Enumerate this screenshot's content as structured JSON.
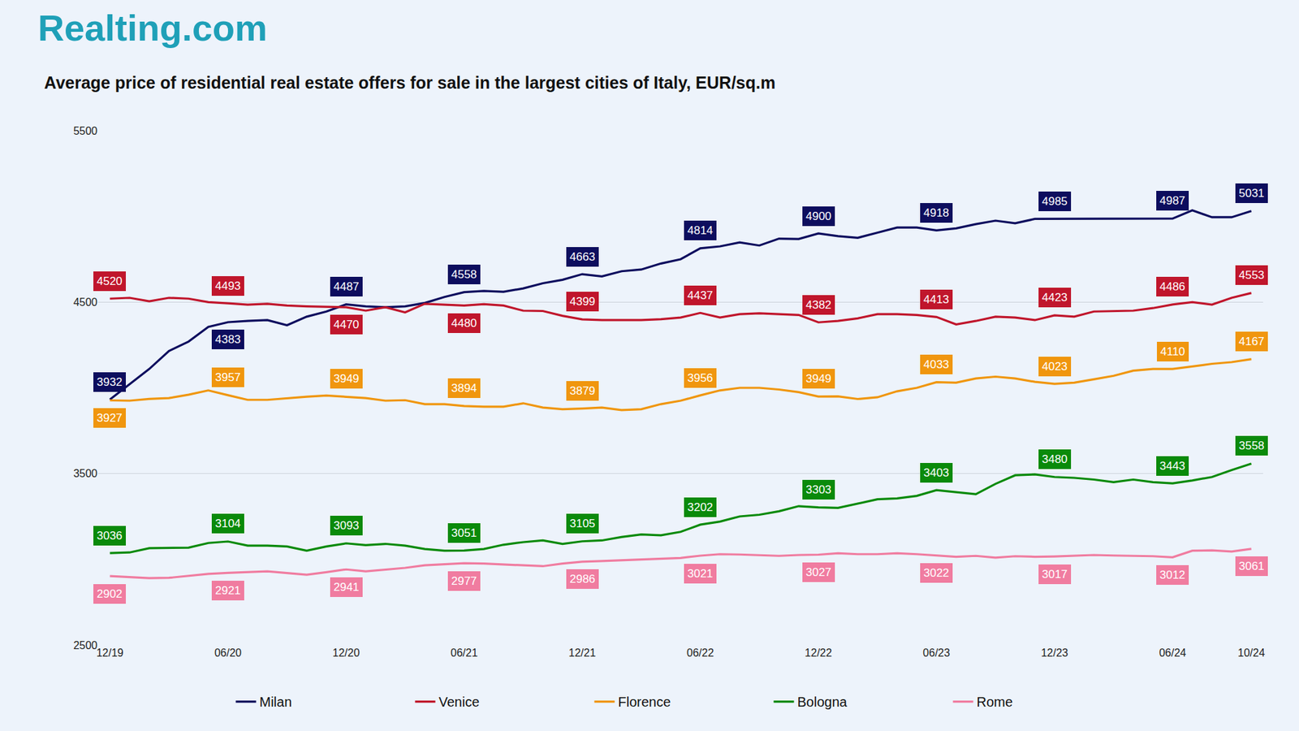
{
  "chart_data": {
    "type": "line",
    "title": "Average price of residential real estate offers for sale in the largest cities of Italy, EUR/sq.m",
    "annotations": [
      {
        "text": "Realting.com"
      }
    ],
    "categories": [
      "12/19",
      null,
      null,
      null,
      null,
      null,
      "06/20",
      null,
      null,
      null,
      null,
      null,
      "12/20",
      null,
      null,
      null,
      null,
      null,
      "06/21",
      null,
      null,
      null,
      null,
      null,
      "12/21",
      null,
      null,
      null,
      null,
      null,
      "06/22",
      null,
      null,
      null,
      null,
      null,
      "12/22",
      null,
      null,
      null,
      null,
      null,
      "06/23",
      null,
      null,
      null,
      null,
      null,
      "12/23",
      null,
      null,
      null,
      null,
      null,
      "06/24",
      null,
      null,
      null,
      "10/24"
    ],
    "series": [
      {
        "name": "Milan",
        "color": "#0d0d5e",
        "values": [
          3932,
          4020,
          4110,
          4215,
          4270,
          4355,
          4383,
          4390,
          4395,
          4365,
          4415,
          4445,
          4487,
          4475,
          4470,
          4475,
          4495,
          4530,
          4558,
          4565,
          4560,
          4580,
          4610,
          4630,
          4663,
          4650,
          4680,
          4690,
          4725,
          4750,
          4814,
          4825,
          4848,
          4830,
          4870,
          4868,
          4900,
          4885,
          4875,
          4905,
          4935,
          4935,
          4918,
          4930,
          4955,
          4975,
          4960,
          4985,
          4985,
          4985,
          4986,
          4987,
          4988,
          4988,
          4987,
          5035,
          4995,
          4995,
          5031
        ]
      },
      {
        "name": "Venice",
        "color": "#c0162c",
        "values": [
          4520,
          4525,
          4505,
          4525,
          4520,
          4500,
          4493,
          4485,
          4490,
          4480,
          4475,
          4472,
          4470,
          4450,
          4470,
          4440,
          4490,
          4485,
          4480,
          4488,
          4480,
          4450,
          4448,
          4420,
          4399,
          4395,
          4395,
          4395,
          4400,
          4410,
          4437,
          4410,
          4430,
          4435,
          4430,
          4425,
          4382,
          4390,
          4405,
          4430,
          4430,
          4425,
          4413,
          4370,
          4390,
          4415,
          4410,
          4395,
          4423,
          4415,
          4445,
          4448,
          4450,
          4465,
          4486,
          4500,
          4485,
          4525,
          4553
        ]
      },
      {
        "name": "Florence",
        "color": "#f0960e",
        "values": [
          3927,
          3925,
          3935,
          3940,
          3960,
          3985,
          3957,
          3930,
          3930,
          3940,
          3948,
          3955,
          3949,
          3940,
          3925,
          3928,
          3905,
          3905,
          3894,
          3890,
          3890,
          3910,
          3885,
          3875,
          3879,
          3885,
          3870,
          3875,
          3905,
          3925,
          3956,
          3985,
          4000,
          4000,
          3990,
          3975,
          3949,
          3950,
          3935,
          3945,
          3980,
          4000,
          4033,
          4030,
          4055,
          4065,
          4055,
          4035,
          4023,
          4030,
          4050,
          4070,
          4100,
          4110,
          4110,
          4125,
          4140,
          4150,
          4167
        ]
      },
      {
        "name": "Bologna",
        "color": "#0a8a0a",
        "values": [
          3036,
          3040,
          3065,
          3068,
          3068,
          3095,
          3104,
          3080,
          3080,
          3075,
          3050,
          3075,
          3093,
          3083,
          3090,
          3080,
          3060,
          3050,
          3051,
          3060,
          3085,
          3100,
          3110,
          3090,
          3105,
          3110,
          3130,
          3145,
          3140,
          3160,
          3202,
          3220,
          3250,
          3260,
          3280,
          3310,
          3303,
          3300,
          3325,
          3350,
          3355,
          3370,
          3403,
          3390,
          3380,
          3440,
          3490,
          3495,
          3480,
          3475,
          3465,
          3450,
          3465,
          3450,
          3443,
          3460,
          3480,
          3520,
          3558
        ]
      },
      {
        "name": "Rome",
        "color": "#f07ca0",
        "values": [
          2902,
          2895,
          2890,
          2892,
          2905,
          2915,
          2921,
          2925,
          2930,
          2920,
          2910,
          2925,
          2941,
          2930,
          2940,
          2950,
          2965,
          2970,
          2977,
          2975,
          2970,
          2965,
          2960,
          2975,
          2986,
          2990,
          2995,
          3000,
          3005,
          3008,
          3021,
          3030,
          3028,
          3025,
          3020,
          3025,
          3027,
          3035,
          3030,
          3030,
          3035,
          3030,
          3022,
          3015,
          3020,
          3010,
          3018,
          3015,
          3017,
          3020,
          3025,
          3022,
          3020,
          3018,
          3012,
          3050,
          3052,
          3045,
          3061
        ]
      }
    ],
    "ylim": [
      2500,
      5500
    ],
    "yticks": [
      2500,
      3500,
      4500,
      5500
    ],
    "grid": true,
    "legend": "bottom",
    "data_labels": true
  }
}
